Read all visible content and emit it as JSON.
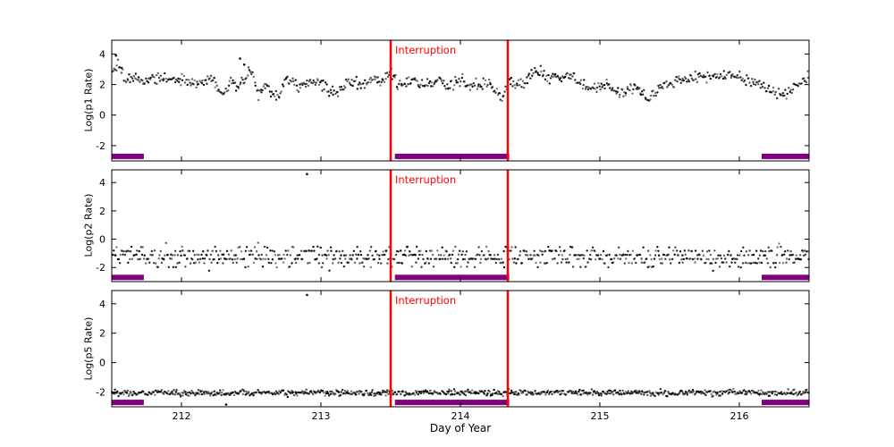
{
  "chart_data": {
    "type": "scatter",
    "title": "",
    "xlabel": "Day of Year",
    "x_range": [
      211.5,
      216.5
    ],
    "x_ticks": [
      212,
      213,
      214,
      215,
      216
    ],
    "point_color": "#000000",
    "background": "#ffffff",
    "seed": 42,
    "interruption": {
      "label": "Interruption",
      "color": "#ff0000",
      "x_start": 213.5,
      "x_end": 214.34
    },
    "coverage_bars": {
      "color": "#800080",
      "y": -2.7,
      "thickness": 6,
      "ranges": [
        [
          211.5,
          211.73
        ],
        [
          213.53,
          214.35
        ],
        [
          216.16,
          216.5
        ]
      ]
    },
    "panels": [
      {
        "ylabel": "Log(p1 Rate)",
        "y_range": [
          -3.0,
          4.9
        ],
        "y_ticks": [
          -2,
          0,
          2,
          4
        ],
        "series": {
          "n": 700,
          "noise": 0.18,
          "trend": [
            [
              211.5,
              2.6
            ],
            [
              211.55,
              3.5
            ],
            [
              211.6,
              2.1
            ],
            [
              211.65,
              2.5
            ],
            [
              211.75,
              2.2
            ],
            [
              211.85,
              2.5
            ],
            [
              211.95,
              2.2
            ],
            [
              212.0,
              2.4
            ],
            [
              212.1,
              2.0
            ],
            [
              212.2,
              2.4
            ],
            [
              212.3,
              1.2
            ],
            [
              212.35,
              2.3
            ],
            [
              212.4,
              1.8
            ],
            [
              212.5,
              2.9
            ],
            [
              212.55,
              1.4
            ],
            [
              212.6,
              2.0
            ],
            [
              212.7,
              1.1
            ],
            [
              212.75,
              2.4
            ],
            [
              212.85,
              1.8
            ],
            [
              212.95,
              2.2
            ],
            [
              213.0,
              1.9
            ],
            [
              213.1,
              1.5
            ],
            [
              213.2,
              2.2
            ],
            [
              213.3,
              2.0
            ],
            [
              213.35,
              2.4
            ],
            [
              213.45,
              2.2
            ],
            [
              213.5,
              2.9
            ],
            [
              213.55,
              2.0
            ],
            [
              213.65,
              2.2
            ],
            [
              213.75,
              2.0
            ],
            [
              213.85,
              2.3
            ],
            [
              213.9,
              1.8
            ],
            [
              214.0,
              2.3
            ],
            [
              214.1,
              1.9
            ],
            [
              214.2,
              2.1
            ],
            [
              214.3,
              1.1
            ],
            [
              214.35,
              2.3
            ],
            [
              214.45,
              2.0
            ],
            [
              214.55,
              2.9
            ],
            [
              214.65,
              2.4
            ],
            [
              214.75,
              2.7
            ],
            [
              214.85,
              2.2
            ],
            [
              214.95,
              1.6
            ],
            [
              215.05,
              2.1
            ],
            [
              215.15,
              1.4
            ],
            [
              215.25,
              1.9
            ],
            [
              215.35,
              1.0
            ],
            [
              215.45,
              1.9
            ],
            [
              215.6,
              2.3
            ],
            [
              215.8,
              2.6
            ],
            [
              216.0,
              2.5
            ],
            [
              216.15,
              2.0
            ],
            [
              216.3,
              1.2
            ],
            [
              216.4,
              1.9
            ],
            [
              216.5,
              2.5
            ]
          ],
          "outliers": [
            [
              211.53,
              3.9
            ],
            [
              212.42,
              3.7
            ],
            [
              212.45,
              3.3
            ]
          ]
        }
      },
      {
        "ylabel": "Log(p2 Rate)",
        "y_range": [
          -3.0,
          4.9
        ],
        "y_ticks": [
          -2,
          0,
          2,
          4
        ],
        "series": {
          "n": 750,
          "noise": 0.38,
          "quantize": 0.28,
          "trend": [
            [
              211.5,
              -1.2
            ],
            [
              216.5,
              -1.25
            ]
          ],
          "outliers": [
            [
              212.9,
              4.6
            ]
          ]
        }
      },
      {
        "ylabel": "Log(p5 Rate)",
        "y_range": [
          -3.0,
          4.9
        ],
        "y_ticks": [
          -2,
          0,
          2,
          4
        ],
        "series": {
          "n": 800,
          "noise": 0.1,
          "trend": [
            [
              211.5,
              -2.05
            ],
            [
              216.5,
              -2.05
            ]
          ],
          "outliers": [
            [
              212.9,
              4.6
            ],
            [
              212.32,
              -2.85
            ]
          ]
        }
      }
    ]
  }
}
